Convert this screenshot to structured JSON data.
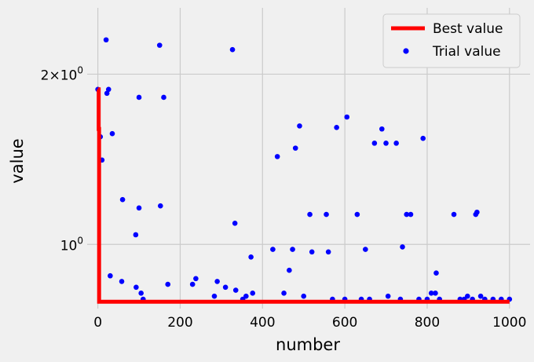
{
  "chart_data": {
    "type": "scatter",
    "title": "",
    "xlabel": "number",
    "ylabel": "value",
    "xlim": [
      -26,
      1050
    ],
    "ylim": [
      0.77,
      2.62
    ],
    "y_scale": "log",
    "grid": true,
    "legend_position": "top-right",
    "x_ticks": [
      0,
      200,
      400,
      600,
      800,
      1000
    ],
    "x_tick_labels": [
      "0",
      "200",
      "400",
      "600",
      "800",
      "1000"
    ],
    "y_ticks": [
      1,
      2
    ],
    "y_tick_labels": [
      "10^0",
      "2×10^0"
    ],
    "series": [
      {
        "name": "Best value",
        "kind": "line",
        "color": "#ff0000",
        "x": [
          0,
          1,
          2,
          3,
          1000
        ],
        "y": [
          1.88,
          1.88,
          1.6,
          0.792,
          0.792
        ]
      },
      {
        "name": "Trial value",
        "kind": "scatter",
        "color": "#0000ff",
        "x": [
          0,
          6,
          10,
          20,
          22,
          26,
          30,
          35,
          58,
          60,
          92,
          93,
          100,
          100,
          105,
          110,
          150,
          152,
          160,
          170,
          230,
          238,
          283,
          290,
          310,
          327,
          333,
          335,
          352,
          360,
          372,
          376,
          425,
          436,
          452,
          465,
          473,
          480,
          490,
          500,
          515,
          520,
          555,
          560,
          570,
          580,
          600,
          605,
          630,
          640,
          650,
          660,
          672,
          690,
          700,
          705,
          725,
          735,
          740,
          750,
          760,
          780,
          790,
          800,
          810,
          820,
          822,
          830,
          865,
          880,
          890,
          898,
          910,
          918,
          921,
          930,
          940,
          960,
          980,
          1000
        ],
        "y": [
          1.88,
          1.55,
          1.41,
          2.3,
          1.85,
          1.88,
          0.88,
          1.57,
          0.86,
          1.2,
          1.04,
          0.84,
          1.16,
          1.82,
          0.82,
          0.8,
          2.25,
          1.17,
          1.82,
          0.85,
          0.85,
          0.87,
          0.81,
          0.86,
          0.84,
          2.21,
          1.09,
          0.83,
          0.8,
          0.81,
          0.95,
          0.82,
          0.98,
          1.43,
          0.82,
          0.9,
          0.98,
          1.48,
          1.62,
          0.81,
          1.13,
          0.97,
          1.13,
          0.97,
          0.8,
          1.61,
          0.8,
          1.68,
          1.13,
          0.8,
          0.98,
          0.8,
          1.51,
          1.6,
          1.51,
          0.81,
          1.51,
          0.8,
          0.99,
          1.13,
          1.13,
          0.8,
          1.54,
          0.8,
          0.82,
          0.82,
          0.89,
          0.8,
          1.13,
          0.8,
          0.8,
          0.81,
          0.8,
          1.13,
          1.14,
          0.81,
          0.8,
          0.8,
          0.8,
          0.8
        ]
      }
    ]
  }
}
